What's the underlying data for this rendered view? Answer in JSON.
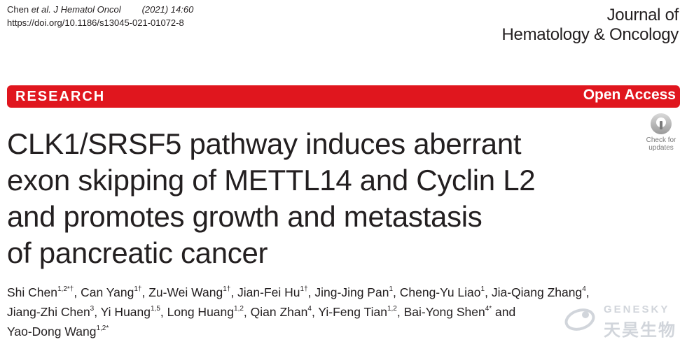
{
  "citation": {
    "authors_prefix": "Chen ",
    "journal_ref": "et al. J Hematol Oncol",
    "year_page": "(2021) 14:60",
    "doi": "https://doi.org/10.1186/s13045-021-01072-8"
  },
  "journal": {
    "line1": "Journal of",
    "line2": "Hematology & Oncology"
  },
  "banner": {
    "article_type": "RESEARCH",
    "access": "Open Access",
    "color": "#e0161e"
  },
  "title_lines": [
    "CLK1/SRSF5 pathway induces aberrant",
    "exon skipping of METTL14 and Cyclin L2",
    "and promotes growth and metastasis",
    "of pancreatic cancer"
  ],
  "check_updates": {
    "line1": "Check for",
    "line2": "updates"
  },
  "authors": [
    {
      "name": "Shi Chen",
      "sup": "1,2*†",
      "sep": ", "
    },
    {
      "name": "Can Yang",
      "sup": "1†",
      "sep": ", "
    },
    {
      "name": "Zu-Wei Wang",
      "sup": "1†",
      "sep": ", "
    },
    {
      "name": "Jian-Fei Hu",
      "sup": "1†",
      "sep": ", "
    },
    {
      "name": "Jing-Jing Pan",
      "sup": "1",
      "sep": ", "
    },
    {
      "name": "Cheng-Yu Liao",
      "sup": "1",
      "sep": ", "
    },
    {
      "name": "Jia-Qiang Zhang",
      "sup": "4",
      "sep": ","
    },
    {
      "name": "Jiang-Zhi Chen",
      "sup": "3",
      "sep": ", "
    },
    {
      "name": "Yi Huang",
      "sup": "1,5",
      "sep": ", "
    },
    {
      "name": "Long Huang",
      "sup": "1,2",
      "sep": ", "
    },
    {
      "name": "Qian Zhan",
      "sup": "4",
      "sep": ", "
    },
    {
      "name": "Yi-Feng Tian",
      "sup": "1,2",
      "sep": ", "
    },
    {
      "name": "Bai-Yong Shen",
      "sup": "4*",
      "sep": " and"
    },
    {
      "name": "Yao-Dong Wang",
      "sup": "1,2*",
      "sep": ""
    }
  ],
  "watermark": {
    "en": "GENESKY",
    "cn": "天昊生物"
  }
}
